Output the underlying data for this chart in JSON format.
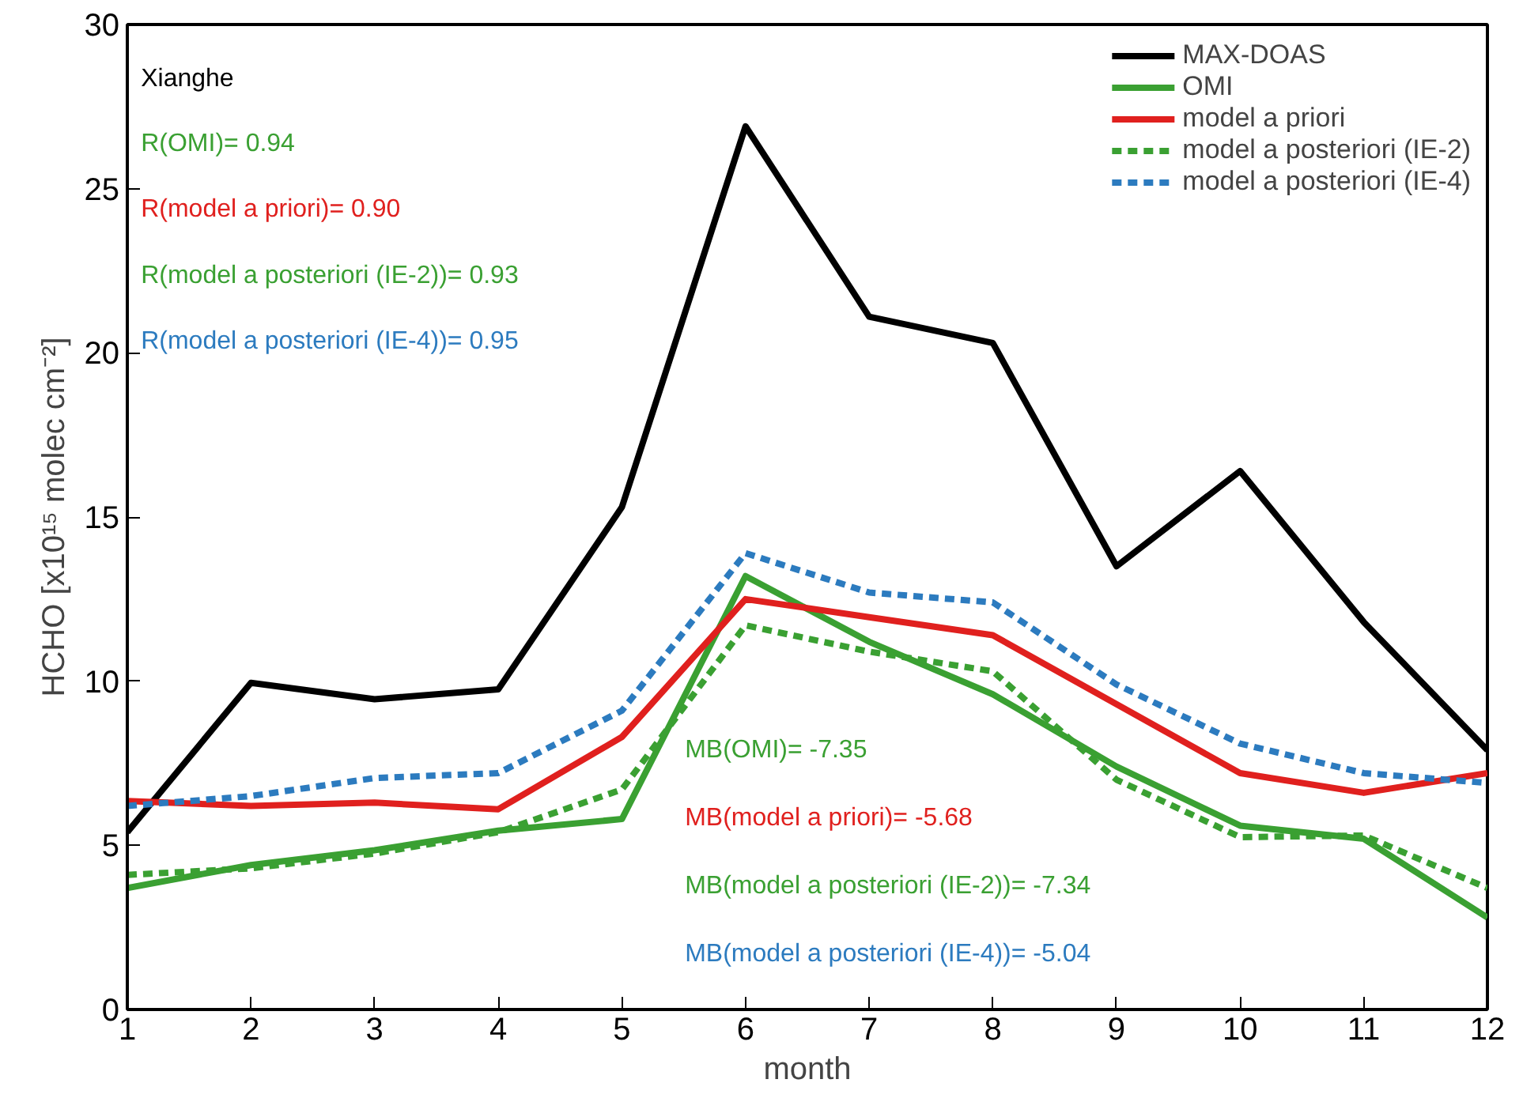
{
  "chart_data": {
    "type": "line",
    "xlabel": "month",
    "ylabel": "HCHO [x10¹⁵ molec cm⁻²]",
    "x": [
      1,
      2,
      3,
      4,
      5,
      6,
      7,
      8,
      9,
      10,
      11,
      12
    ],
    "xlim": [
      1,
      12
    ],
    "xticks": [
      1,
      2,
      3,
      4,
      5,
      6,
      7,
      8,
      9,
      10,
      11,
      12
    ],
    "ylim": [
      0,
      30
    ],
    "yticks": [
      0,
      5,
      10,
      15,
      20,
      25,
      30
    ],
    "grid": false,
    "legend": "top right",
    "series": [
      {
        "name": "MAX-DOAS",
        "color": "#000000",
        "line_style": "solid",
        "values": [
          5.4,
          9.95,
          9.45,
          9.75,
          15.3,
          26.9,
          21.1,
          20.3,
          13.5,
          16.4,
          11.8,
          7.9
        ]
      },
      {
        "name": "OMI",
        "color": "#3aa032",
        "line_style": "solid",
        "values": [
          3.7,
          4.4,
          4.85,
          5.45,
          5.8,
          13.2,
          11.2,
          9.6,
          7.4,
          5.6,
          5.2,
          2.8
        ]
      },
      {
        "name": "model a priori",
        "color": "#e0201e",
        "line_style": "solid",
        "values": [
          6.35,
          6.2,
          6.3,
          6.1,
          8.3,
          12.5,
          11.95,
          11.4,
          9.3,
          7.2,
          6.6,
          7.2
        ]
      },
      {
        "name": "model a posteriori (IE-2)",
        "color": "#3aa032",
        "line_style": "dashed",
        "values": [
          4.1,
          4.3,
          4.75,
          5.4,
          6.7,
          11.7,
          10.9,
          10.3,
          7.0,
          5.25,
          5.3,
          3.7
        ]
      },
      {
        "name": "model a posteriori (IE-4)",
        "color": "#2c7bbf",
        "line_style": "dashed",
        "values": [
          6.2,
          6.5,
          7.05,
          7.2,
          9.1,
          13.9,
          12.7,
          12.4,
          9.9,
          8.1,
          7.2,
          6.9
        ]
      }
    ],
    "annotations": [
      "Xianghe",
      "R(OMI)=  0.94",
      "R(model a priori)=  0.90",
      "R(model a posteriori (IE-2))=  0.93",
      "R(model a posteriori (IE-4))=  0.95",
      "MB(OMI)= -7.35",
      "MB(model a priori)= -5.68",
      "MB(model a posteriori (IE-2))= -7.34",
      "MB(model a posteriori (IE-4))= -5.04"
    ]
  }
}
